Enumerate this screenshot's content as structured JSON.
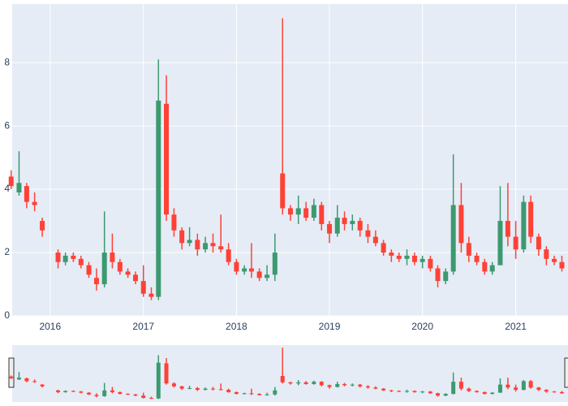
{
  "chart_data": {
    "type": "candlestick",
    "x": [
      "2015-08",
      "2015-09",
      "2015-10",
      "2015-11",
      "2015-12",
      "2016-02",
      "2016-03",
      "2016-04",
      "2016-05",
      "2016-06",
      "2016-07",
      "2016-08",
      "2016-09",
      "2016-10",
      "2016-11",
      "2016-12",
      "2017-01",
      "2017-02",
      "2017-03",
      "2017-04",
      "2017-05",
      "2017-06",
      "2017-07",
      "2017-08",
      "2017-09",
      "2017-10",
      "2017-11",
      "2017-12",
      "2018-01",
      "2018-02",
      "2018-03",
      "2018-04",
      "2018-05",
      "2018-06",
      "2018-07",
      "2018-08",
      "2018-09",
      "2018-10",
      "2018-11",
      "2018-12",
      "2019-01",
      "2019-02",
      "2019-03",
      "2019-04",
      "2019-05",
      "2019-06",
      "2019-07",
      "2019-08",
      "2019-09",
      "2019-10",
      "2019-11",
      "2019-12",
      "2020-01",
      "2020-02",
      "2020-03",
      "2020-04",
      "2020-05",
      "2020-06",
      "2020-07",
      "2020-08",
      "2020-09",
      "2020-10",
      "2020-11",
      "2020-12",
      "2021-01",
      "2021-02",
      "2021-03",
      "2021-04",
      "2021-05",
      "2021-06",
      "2021-07"
    ],
    "open": [
      4.4,
      3.9,
      4.1,
      3.6,
      3.0,
      2.0,
      1.7,
      1.9,
      1.8,
      1.6,
      1.2,
      1.0,
      2.0,
      1.7,
      1.4,
      1.3,
      1.1,
      0.7,
      0.6,
      6.7,
      3.2,
      2.7,
      2.3,
      2.4,
      2.1,
      2.3,
      2.2,
      2.1,
      1.7,
      1.4,
      1.5,
      1.4,
      1.2,
      1.3,
      4.5,
      3.4,
      3.2,
      3.4,
      3.1,
      3.5,
      2.9,
      2.6,
      3.1,
      2.9,
      3.0,
      2.7,
      2.5,
      2.3,
      2.0,
      1.9,
      1.8,
      1.9,
      1.7,
      1.8,
      1.5,
      1.1,
      1.4,
      3.5,
      2.3,
      1.9,
      1.7,
      1.4,
      1.6,
      3.0,
      2.5,
      2.1,
      3.6,
      2.5,
      2.1,
      1.8,
      1.7
    ],
    "high": [
      4.6,
      5.2,
      4.2,
      3.9,
      3.1,
      2.1,
      2.0,
      2.0,
      1.9,
      1.7,
      1.5,
      3.3,
      2.6,
      1.8,
      1.5,
      1.4,
      1.6,
      0.9,
      8.1,
      7.6,
      3.4,
      2.8,
      2.8,
      2.6,
      2.5,
      2.6,
      3.2,
      2.3,
      1.8,
      1.6,
      2.3,
      1.5,
      1.6,
      2.6,
      9.4,
      3.5,
      3.8,
      3.6,
      3.7,
      3.6,
      3.0,
      3.5,
      3.3,
      3.2,
      3.1,
      2.9,
      2.7,
      2.4,
      2.1,
      2.0,
      2.1,
      2.0,
      1.9,
      1.9,
      1.6,
      1.5,
      5.1,
      4.2,
      2.5,
      2.0,
      1.8,
      1.7,
      4.1,
      4.2,
      3.0,
      3.8,
      3.8,
      2.6,
      2.2,
      1.9,
      1.9
    ],
    "low": [
      4.0,
      3.8,
      3.4,
      3.3,
      2.5,
      1.5,
      1.6,
      1.7,
      1.5,
      1.2,
      0.8,
      0.9,
      1.5,
      1.3,
      1.2,
      1.0,
      0.6,
      0.5,
      0.5,
      3.0,
      2.5,
      2.1,
      2.2,
      1.9,
      2.0,
      2.0,
      2.0,
      1.6,
      1.3,
      1.3,
      1.2,
      1.1,
      1.1,
      1.1,
      3.2,
      3.0,
      2.9,
      3.0,
      3.0,
      2.7,
      2.3,
      2.5,
      2.7,
      2.7,
      2.5,
      2.3,
      2.2,
      1.9,
      1.7,
      1.7,
      1.6,
      1.6,
      1.5,
      1.4,
      0.9,
      1.0,
      1.3,
      2.0,
      1.7,
      1.6,
      1.3,
      1.3,
      1.6,
      2.2,
      1.8,
      2.0,
      2.3,
      1.9,
      1.6,
      1.6,
      1.4
    ],
    "close": [
      4.1,
      4.2,
      3.6,
      3.5,
      2.7,
      1.7,
      1.9,
      1.8,
      1.6,
      1.3,
      1.0,
      2.0,
      1.7,
      1.4,
      1.3,
      1.1,
      0.7,
      0.6,
      6.8,
      3.2,
      2.7,
      2.3,
      2.4,
      2.1,
      2.3,
      2.2,
      2.1,
      1.7,
      1.4,
      1.5,
      1.4,
      1.2,
      1.3,
      2.0,
      3.4,
      3.2,
      3.4,
      3.1,
      3.5,
      2.9,
      2.6,
      3.1,
      2.9,
      3.0,
      2.7,
      2.5,
      2.3,
      2.0,
      1.9,
      1.8,
      1.9,
      1.7,
      1.8,
      1.5,
      1.1,
      1.4,
      3.5,
      2.3,
      1.9,
      1.7,
      1.4,
      1.6,
      3.0,
      2.5,
      2.1,
      3.6,
      2.5,
      2.1,
      1.8,
      1.7,
      1.5
    ],
    "increasing_color": "#3d9970",
    "decreasing_color": "#ff4136",
    "xlim": [
      "2015-08-05",
      "2021-07-25"
    ],
    "xticks": [
      {
        "value": "2016-01-01",
        "label": "2016"
      },
      {
        "value": "2017-01-01",
        "label": "2017"
      },
      {
        "value": "2018-01-01",
        "label": "2018"
      },
      {
        "value": "2019-01-01",
        "label": "2019"
      },
      {
        "value": "2020-01-01",
        "label": "2020"
      },
      {
        "value": "2021-01-01",
        "label": "2021"
      }
    ],
    "ylim": [
      0,
      9.85
    ],
    "yticks": [
      0,
      2,
      4,
      6,
      8
    ],
    "grid": true,
    "rangeslider": true
  }
}
